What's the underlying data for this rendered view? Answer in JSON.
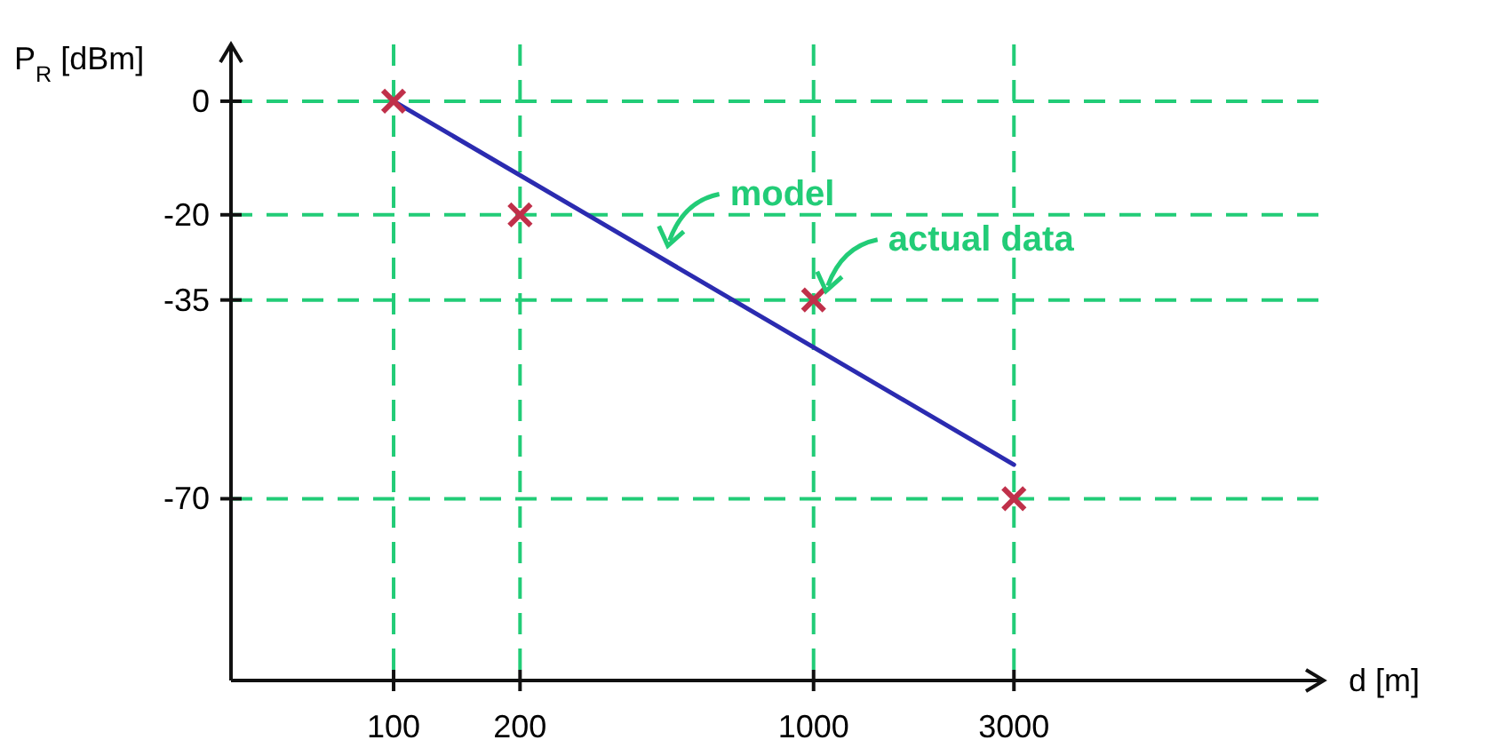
{
  "chart_data": {
    "type": "scatter",
    "xlabel": "d [m]",
    "ylabel": "P$_{R}$ [dBm]",
    "log": "x",
    "xlim": [
      41,
      16400
    ],
    "xticks": [
      100,
      200,
      1000,
      3000
    ],
    "ylim": [
      -102,
      10
    ],
    "yticks": [
      0,
      -20,
      -35,
      -70
    ],
    "grid": true,
    "annotations": [
      {
        "text": "model",
        "x": 420,
        "y": -27
      },
      {
        "text": "actual data",
        "x": 1000,
        "y": -35
      }
    ],
    "series": [
      {
        "type": "line",
        "color": "#2b2bb0",
        "x": [
          100,
          3000
        ],
        "values": [
          0,
          -64
        ],
        "marker": "none"
      },
      {
        "color": "#c0304a",
        "x": [
          100,
          200,
          1000,
          3000
        ],
        "values": [
          0,
          -20,
          -35,
          -70
        ],
        "marker": "cross"
      }
    ]
  }
}
